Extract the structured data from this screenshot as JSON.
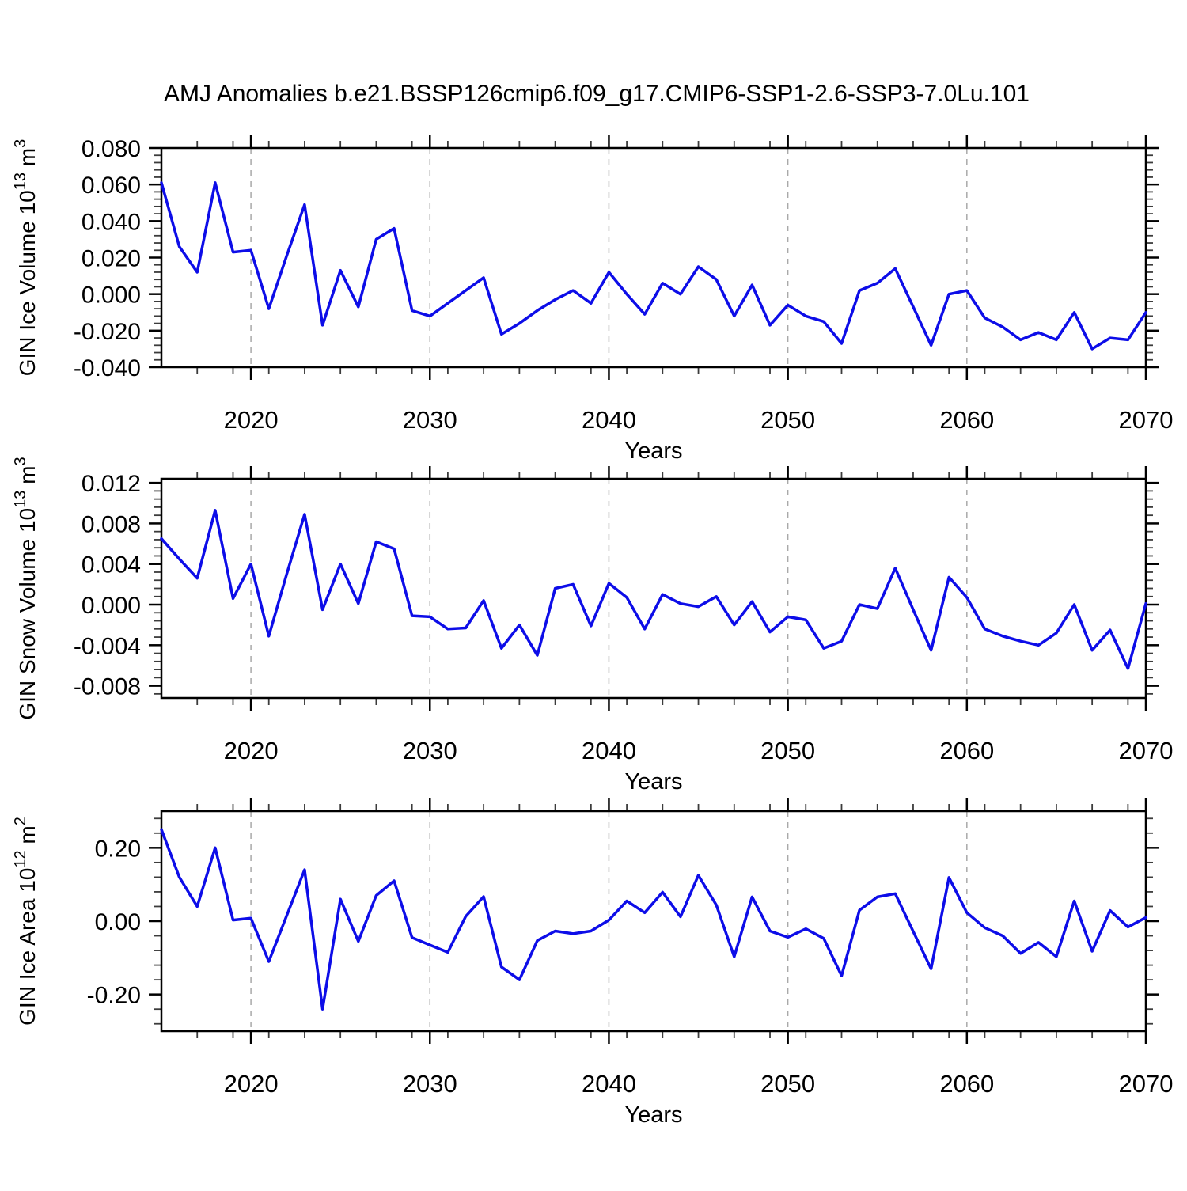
{
  "title": "AMJ Anomalies b.e21.BSSP126cmip6.f09_g17.CMIP6-SSP1-2.6-SSP3-7.0Lu.101",
  "figure": {
    "background": "#ffffff",
    "line_color": "#0d0de8",
    "axis_color": "#000000",
    "grid_color": "#a9a9a9"
  },
  "x_axis": {
    "label": "Years",
    "min": 2015,
    "max": 2070,
    "major_ticks": [
      2020,
      2030,
      2040,
      2050,
      2060,
      2070
    ],
    "major_tick_labels": [
      "2020",
      "2030",
      "2040",
      "2050",
      "2060",
      "2070"
    ],
    "minor_step": 2,
    "gridlines": [
      2020,
      2030,
      2040,
      2050,
      2060
    ],
    "years": [
      2015,
      2016,
      2017,
      2018,
      2019,
      2020,
      2021,
      2022,
      2023,
      2024,
      2025,
      2026,
      2027,
      2028,
      2029,
      2030,
      2031,
      2032,
      2033,
      2034,
      2035,
      2036,
      2037,
      2038,
      2039,
      2040,
      2041,
      2042,
      2043,
      2044,
      2045,
      2046,
      2047,
      2048,
      2049,
      2050,
      2051,
      2052,
      2053,
      2054,
      2055,
      2056,
      2057,
      2058,
      2059,
      2060,
      2061,
      2062,
      2063,
      2064,
      2065,
      2066,
      2067,
      2068,
      2069,
      2070
    ]
  },
  "chart_data": [
    {
      "id": "gin-ice-volume",
      "type": "line",
      "ylabel": "GIN Ice Volume 10^13^ m^3^",
      "xlabel": "Years",
      "ylim": [
        -0.04,
        0.08
      ],
      "ytick_values": [
        0.08,
        0.06,
        0.04,
        0.02,
        0.0,
        -0.02,
        -0.04
      ],
      "ytick_labels": [
        "0.080",
        "0.060",
        "0.040",
        "0.020",
        "0.000",
        "-0.020",
        "-0.040"
      ],
      "y_minor_step": 0.004,
      "grid": "x-dashed",
      "legend": "none",
      "values": [
        0.061,
        0.026,
        0.012,
        0.061,
        0.023,
        0.024,
        -0.008,
        0.021,
        0.049,
        -0.017,
        0.013,
        -0.007,
        0.03,
        0.036,
        -0.009,
        -0.012,
        -0.005,
        0.002,
        0.009,
        -0.022,
        -0.016,
        -0.009,
        -0.003,
        0.002,
        -0.005,
        0.012,
        0.0,
        -0.011,
        0.006,
        0.0,
        0.015,
        0.008,
        -0.012,
        0.005,
        -0.017,
        -0.006,
        -0.012,
        -0.015,
        -0.027,
        0.002,
        0.006,
        0.014,
        -0.007,
        -0.028,
        0.0,
        0.002,
        -0.013,
        -0.018,
        -0.025,
        -0.021,
        -0.025,
        -0.01,
        -0.03,
        -0.024,
        -0.025,
        -0.01
      ]
    },
    {
      "id": "gin-snow-volume",
      "type": "line",
      "ylabel": "GIN Snow Volume 10^13^ m^3^",
      "xlabel": "Years",
      "ylim": [
        -0.0092,
        0.0124
      ],
      "ytick_values": [
        0.012,
        0.008,
        0.004,
        0.0,
        -0.004,
        -0.008
      ],
      "ytick_labels": [
        "0.012",
        "0.008",
        "0.004",
        "0.000",
        "-0.004",
        "-0.008"
      ],
      "y_minor_step": 0.0008,
      "grid": "x-dashed",
      "legend": "none",
      "values": [
        0.0065,
        0.0045,
        0.0026,
        0.0093,
        0.0006,
        0.004,
        -0.0031,
        0.003,
        0.0089,
        -0.0005,
        0.004,
        0.0001,
        0.0062,
        0.0055,
        -0.0011,
        -0.0012,
        -0.0024,
        -0.0023,
        0.0004,
        -0.0043,
        -0.002,
        -0.005,
        0.0016,
        0.002,
        -0.0021,
        0.0021,
        0.0007,
        -0.0024,
        0.001,
        0.0001,
        -0.0002,
        0.0008,
        -0.002,
        0.0003,
        -0.0027,
        -0.0012,
        -0.0015,
        -0.0043,
        -0.0036,
        0.0,
        -0.0004,
        0.0036,
        -0.0005,
        -0.0045,
        0.0027,
        0.0007,
        -0.0024,
        -0.0031,
        -0.0036,
        -0.004,
        -0.0028,
        0.0,
        -0.0045,
        -0.0025,
        -0.0063,
        0.0001
      ]
    },
    {
      "id": "gin-ice-area",
      "type": "line",
      "ylabel": "GIN Ice Area 10^12^ m^2^",
      "xlabel": "Years",
      "ylim": [
        -0.3,
        0.3
      ],
      "ytick_values": [
        0.2,
        0.0,
        -0.2
      ],
      "ytick_labels": [
        "0.20",
        "0.00",
        "-0.20"
      ],
      "y_minor_step": 0.04,
      "grid": "x-dashed",
      "legend": "none",
      "values": [
        0.25,
        0.12,
        0.04,
        0.2,
        0.003,
        0.008,
        -0.11,
        0.015,
        0.14,
        -0.24,
        0.06,
        -0.055,
        0.07,
        0.11,
        -0.045,
        -0.065,
        -0.085,
        0.013,
        0.067,
        -0.125,
        -0.16,
        -0.053,
        -0.027,
        -0.034,
        -0.027,
        0.003,
        0.055,
        0.023,
        0.079,
        0.012,
        0.125,
        0.044,
        -0.097,
        0.066,
        -0.027,
        -0.044,
        -0.021,
        -0.047,
        -0.149,
        0.03,
        0.066,
        0.075,
        -0.028,
        -0.13,
        0.119,
        0.023,
        -0.018,
        -0.04,
        -0.088,
        -0.058,
        -0.097,
        0.055,
        -0.082,
        0.029,
        -0.016,
        0.01
      ]
    }
  ]
}
